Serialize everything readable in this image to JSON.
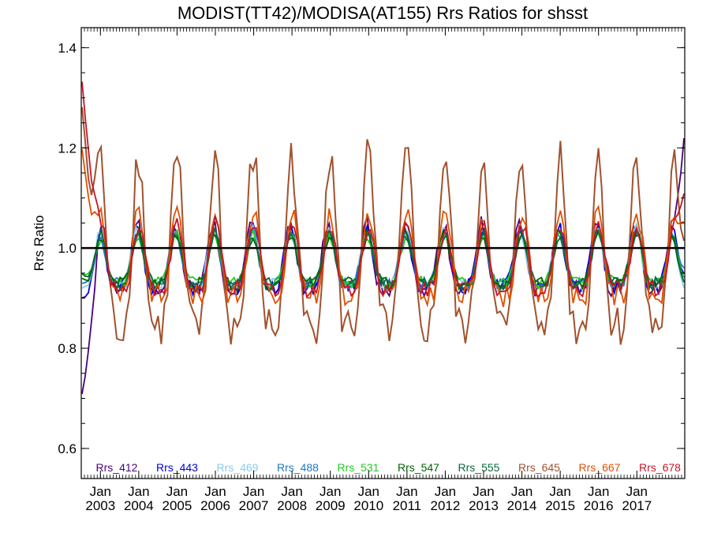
{
  "chart_data": {
    "type": "line",
    "title": "MODIST(TT42)/MODISA(AT155)  Rrs Ratios for shsst",
    "xlabel": "",
    "ylabel": "Rrs Ratio",
    "xlim": [
      2002.5,
      2018.25
    ],
    "ylim": [
      0.54,
      1.44
    ],
    "y_ticks": [
      0.6,
      0.8,
      1.0,
      1.2,
      1.4
    ],
    "y_tick_labels": [
      "0.6",
      "0.8",
      "1.0",
      "1.2",
      "1.4"
    ],
    "x_ticks": [
      2003,
      2004,
      2005,
      2006,
      2007,
      2008,
      2009,
      2010,
      2011,
      2012,
      2013,
      2014,
      2015,
      2016,
      2017
    ],
    "x_tick_month": "Jan",
    "x_tick_labels": [
      "2003",
      "2004",
      "2005",
      "2006",
      "2007",
      "2008",
      "2009",
      "2010",
      "2011",
      "2012",
      "2013",
      "2014",
      "2015",
      "2016",
      "2017"
    ],
    "reference_line": 1.0,
    "grid": false,
    "legend_position": "bottom",
    "series": [
      {
        "name": "Rrs_412",
        "color": "#4b0082",
        "amp": 0.075,
        "phase": 0.0,
        "start": 0.7,
        "end": 1.24,
        "seed": 1
      },
      {
        "name": "Rrs_443",
        "color": "#0000dd",
        "amp": 0.07,
        "phase": 0.01,
        "start": 0.9,
        "end": 0.95,
        "seed": 2
      },
      {
        "name": "Rrs_469",
        "color": "#87ceeb",
        "amp": 0.065,
        "phase": 0.02,
        "start": 0.92,
        "end": 0.92,
        "seed": 3
      },
      {
        "name": "Rrs_488",
        "color": "#1e78c8",
        "amp": 0.06,
        "phase": 0.02,
        "start": 0.93,
        "end": 0.96,
        "seed": 4
      },
      {
        "name": "Rrs_531",
        "color": "#22cc22",
        "amp": 0.055,
        "phase": 0.03,
        "start": 0.95,
        "end": 0.94,
        "seed": 5
      },
      {
        "name": "Rrs_547",
        "color": "#006400",
        "amp": 0.06,
        "phase": 0.03,
        "start": 0.94,
        "end": 0.93,
        "seed": 6
      },
      {
        "name": "Rrs_555",
        "color": "#0a6b3a",
        "amp": 0.06,
        "phase": 0.03,
        "start": 0.95,
        "end": 0.93,
        "seed": 7
      },
      {
        "name": "Rrs_645",
        "color": "#a0522d",
        "amp": 0.2,
        "phase": 0.04,
        "start": 1.3,
        "end": 1.02,
        "seed": 8
      },
      {
        "name": "Rrs_667",
        "color": "#e05000",
        "amp": 0.1,
        "phase": 0.05,
        "start": 1.21,
        "end": 1.06,
        "seed": 9
      },
      {
        "name": "Rrs_678",
        "color": "#c81428",
        "amp": 0.075,
        "phase": 0.05,
        "start": 1.35,
        "end": 1.12,
        "seed": 10
      }
    ]
  }
}
